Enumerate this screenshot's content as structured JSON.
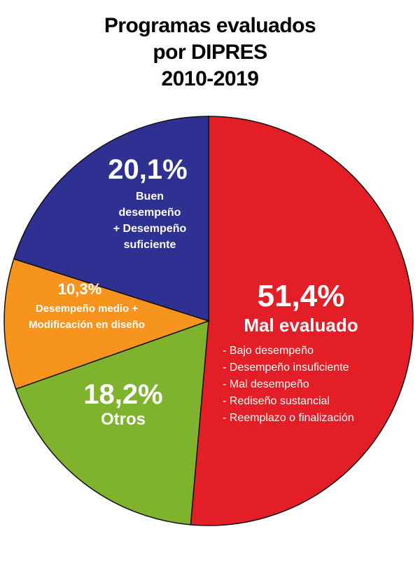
{
  "chart_data": {
    "type": "pie",
    "title_lines": [
      "Programas evaluados",
      "por DIPRES",
      "2010-2019"
    ],
    "slices": [
      {
        "name_lines": [
          "Mal evaluado"
        ],
        "label": "51,4%",
        "value": 51.4,
        "color": "#e41e26",
        "items": [
          "- Bajo desempeño",
          "- Desempeño insuficiente",
          "- Mal desempeño",
          "- Rediseño sustancial",
          "- Reemplazo o finalización"
        ]
      },
      {
        "name_lines": [
          "Otros"
        ],
        "label": "18,2%",
        "value": 18.2,
        "color": "#7fb32d",
        "items": []
      },
      {
        "name_lines": [
          "Desempeño medio +",
          "Modificación en diseño"
        ],
        "label": "10,3%",
        "value": 10.3,
        "color": "#f7941d",
        "items": []
      },
      {
        "name_lines": [
          "Buen",
          "desempeño",
          "+ Desempeño",
          "suficiente"
        ],
        "label": "20,1%",
        "value": 20.1,
        "color": "#2e3192",
        "items": []
      }
    ]
  }
}
